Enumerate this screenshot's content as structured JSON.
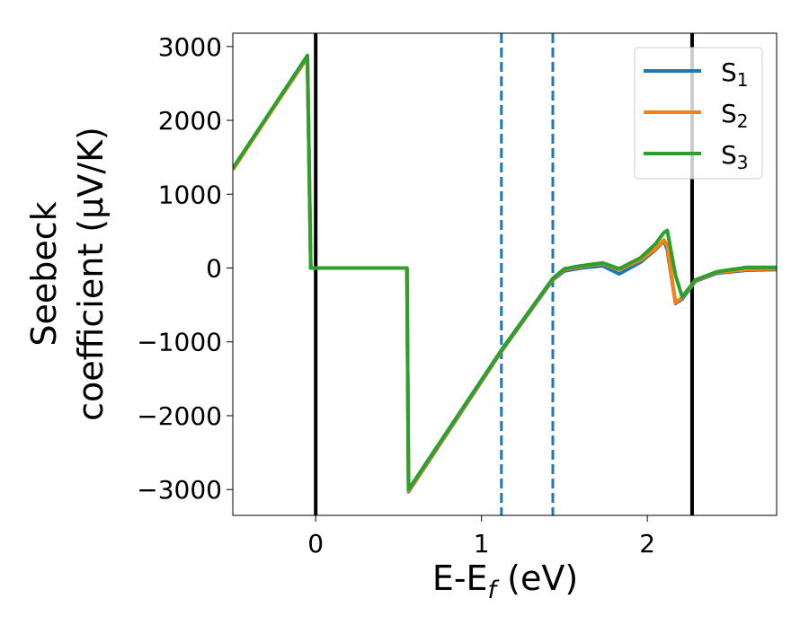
{
  "chart_data": {
    "type": "line",
    "title": "",
    "xlabel": {
      "main": "E-E",
      "sub": "f",
      "unit": " (eV)"
    },
    "ylabel": [
      "Seebeck",
      "coefficient  (μV/K)"
    ],
    "xlim": [
      -0.5,
      2.78
    ],
    "ylim": [
      -3350,
      3180
    ],
    "xticks": [
      {
        "v": 0,
        "label": "0"
      },
      {
        "v": 1,
        "label": "1"
      },
      {
        "v": 2,
        "label": "2"
      }
    ],
    "yticks": [
      {
        "v": 3000,
        "label": "3000"
      },
      {
        "v": 2000,
        "label": "2000"
      },
      {
        "v": 1000,
        "label": "1000"
      },
      {
        "v": 0,
        "label": "0"
      },
      {
        "v": -1000,
        "label": "−1000"
      },
      {
        "v": -2000,
        "label": "−2000"
      },
      {
        "v": -3000,
        "label": "−3000"
      }
    ],
    "grid": false,
    "legend_position": "top-right",
    "x": [
      -0.5,
      -0.05,
      -0.03,
      0.55,
      0.56,
      1.12,
      1.43,
      1.5,
      1.6,
      1.73,
      1.83,
      1.96,
      2.05,
      2.1,
      2.12,
      2.17,
      2.21,
      2.29,
      2.42,
      2.6,
      2.78
    ],
    "series": [
      {
        "name": "S",
        "sub": "1",
        "color": "#1f77b4",
        "values": [
          1350,
          2850,
          0,
          0,
          -3030,
          -1130,
          -160,
          -40,
          0,
          30,
          -80,
          80,
          250,
          370,
          250,
          -480,
          -420,
          -180,
          -70,
          -30,
          -20
        ]
      },
      {
        "name": "S",
        "sub": "2",
        "color": "#ff7f0e",
        "values": [
          1330,
          2860,
          0,
          0,
          -3020,
          -1120,
          -150,
          -20,
          20,
          60,
          -20,
          110,
          260,
          380,
          300,
          -470,
          -400,
          -170,
          -60,
          -20,
          -10
        ]
      },
      {
        "name": "S",
        "sub": "3",
        "color": "#2ca02c",
        "values": [
          1350,
          2880,
          0,
          0,
          -3000,
          -1110,
          -140,
          -10,
          30,
          70,
          -10,
          140,
          330,
          480,
          511,
          -100,
          -390,
          -160,
          -50,
          10,
          10
        ]
      }
    ],
    "vlines": [
      {
        "x": 0,
        "style": "solid",
        "color": "#000000"
      },
      {
        "x": 2.27,
        "style": "solid",
        "color": "#000000"
      },
      {
        "x": 1.12,
        "style": "dashed",
        "color": "#1f77b4"
      },
      {
        "x": 1.43,
        "style": "dashed",
        "color": "#1f77b4"
      }
    ]
  }
}
